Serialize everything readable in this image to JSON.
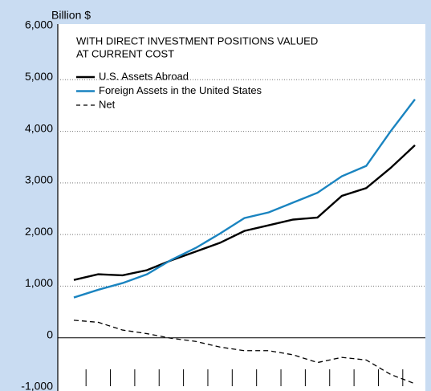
{
  "chart_data": {
    "type": "line",
    "ylabel": "Billion $",
    "annotation": [
      "WITH DIRECT INVESTMENT POSITIONS VALUED",
      "AT CURRENT COST"
    ],
    "categories": [
      null,
      null,
      null,
      null,
      null,
      null,
      null,
      null,
      null,
      null,
      null,
      null,
      null,
      null,
      null
    ],
    "series": [
      {
        "name": "U.S. Assets Abroad",
        "color": "#000000",
        "dash": false,
        "values": [
          1120,
          1230,
          1210,
          1310,
          1500,
          1670,
          1840,
          2070,
          2180,
          2290,
          2330,
          2750,
          2900,
          3290,
          3730
        ]
      },
      {
        "name": "Foreign Assets in the United States",
        "color": "#1a84c0",
        "dash": false,
        "values": [
          780,
          930,
          1060,
          1230,
          1510,
          1740,
          2020,
          2320,
          2430,
          2620,
          2810,
          3130,
          3330,
          4000,
          4620
        ]
      },
      {
        "name": "Net",
        "color": "#000000",
        "dash": true,
        "values": [
          340,
          300,
          150,
          80,
          -10,
          -70,
          -180,
          -250,
          -250,
          -330,
          -480,
          -380,
          -430,
          -710,
          -890
        ]
      }
    ],
    "ylim": [
      -1000,
      6000
    ],
    "yticks": [
      {
        "value": -1000,
        "label": "-1,000"
      },
      0,
      {
        "value": 1000,
        "label": "1,000"
      },
      {
        "value": 2000,
        "label": "2,000"
      },
      {
        "value": 3000,
        "label": "3,000"
      },
      {
        "value": 4000,
        "label": "4,000"
      },
      {
        "value": 5000,
        "label": "5,000"
      },
      {
        "value": 6000,
        "label": "6,000"
      }
    ],
    "grid": true
  }
}
